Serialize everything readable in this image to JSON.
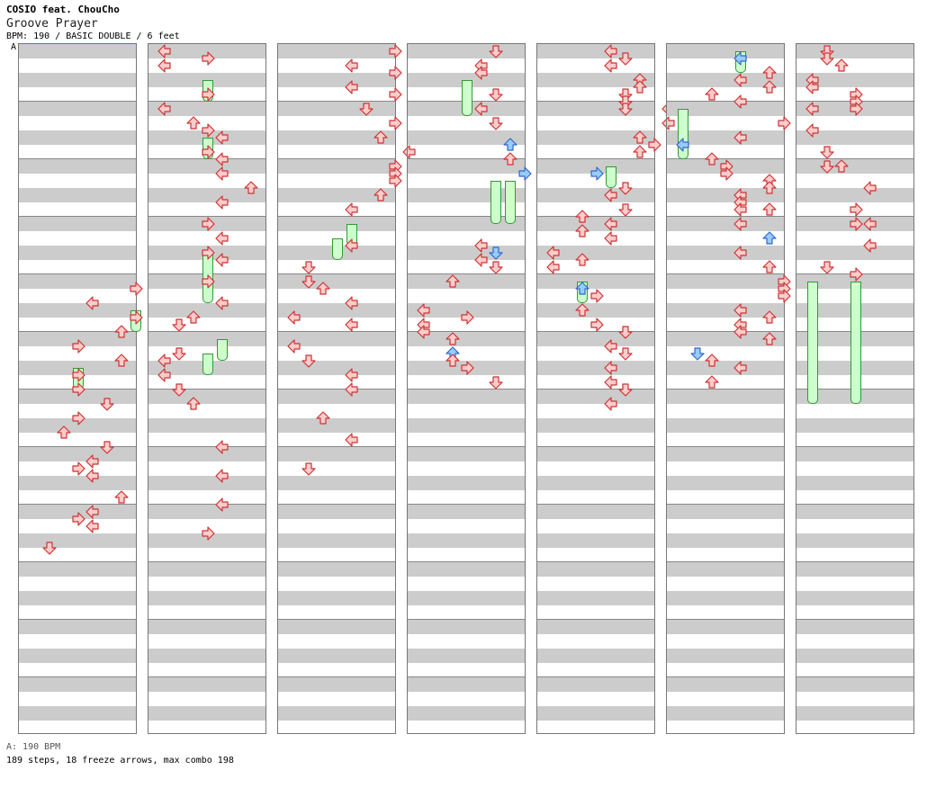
{
  "header": {
    "artist": "COSIO feat. ChouCho",
    "title": "Groove Prayer",
    "info": "BPM: 190 / BASIC DOUBLE / 6 feet"
  },
  "bpm_marker": "A",
  "footer": {
    "bpm_legend": "A: 190 BPM",
    "stats": "189 steps, 18 freeze arrows, max combo 198"
  },
  "colors": {
    "note_red_fill": "#ffcccc",
    "note_red_stroke": "#cc3333",
    "note_blue_fill": "#99ccff",
    "note_blue_stroke": "#3366cc",
    "freeze_fill": "#ccffcc",
    "freeze_stroke": "#339933",
    "stripe": "#cccccc"
  },
  "chart_data": {
    "type": "step-chart",
    "mode": "double",
    "lanes": [
      "P1-left",
      "P1-down",
      "P1-up",
      "P1-right",
      "P2-left",
      "P2-down",
      "P2-up",
      "P2-right"
    ],
    "columns": 7,
    "measures_per_column": 12,
    "rows_per_measure": 8,
    "notes": [
      [
        0,
        33,
        7,
        "r"
      ],
      [
        0,
        35,
        4,
        "r"
      ],
      [
        0,
        37,
        7,
        "r"
      ],
      [
        0,
        39,
        6,
        "r"
      ],
      [
        0,
        41,
        3,
        "r"
      ],
      [
        0,
        43,
        6,
        "r"
      ],
      [
        0,
        45,
        3,
        "r"
      ],
      [
        0,
        47,
        3,
        "r"
      ],
      [
        0,
        49,
        5,
        "r"
      ],
      [
        0,
        51,
        3,
        "r"
      ],
      [
        0,
        53,
        2,
        "r"
      ],
      [
        0,
        55,
        5,
        "r"
      ],
      [
        0,
        57,
        4,
        "r"
      ],
      [
        0,
        58,
        3,
        "r"
      ],
      [
        0,
        59,
        4,
        "r"
      ],
      [
        0,
        62,
        6,
        "r"
      ],
      [
        0,
        64,
        4,
        "r"
      ],
      [
        0,
        65,
        3,
        "r"
      ],
      [
        0,
        66,
        4,
        "r"
      ],
      [
        0,
        69,
        1,
        "r"
      ],
      [
        1,
        0,
        0,
        "r"
      ],
      [
        1,
        1,
        3,
        "r"
      ],
      [
        1,
        2,
        0,
        "r"
      ],
      [
        1,
        6,
        3,
        "r"
      ],
      [
        1,
        8,
        0,
        "r"
      ],
      [
        1,
        10,
        2,
        "r"
      ],
      [
        1,
        11,
        3,
        "r"
      ],
      [
        1,
        12,
        4,
        "r"
      ],
      [
        1,
        14,
        3,
        "r"
      ],
      [
        1,
        15,
        4,
        "r"
      ],
      [
        1,
        17,
        4,
        "r"
      ],
      [
        1,
        19,
        6,
        "r"
      ],
      [
        1,
        21,
        4,
        "r"
      ],
      [
        1,
        24,
        3,
        "r"
      ],
      [
        1,
        26,
        4,
        "r"
      ],
      [
        1,
        28,
        3,
        "r"
      ],
      [
        1,
        29,
        4,
        "r"
      ],
      [
        1,
        32,
        3,
        "r"
      ],
      [
        1,
        35,
        4,
        "r"
      ],
      [
        1,
        37,
        2,
        "r"
      ],
      [
        1,
        38,
        1,
        "r"
      ],
      [
        1,
        42,
        1,
        "r"
      ],
      [
        1,
        43,
        0,
        "r"
      ],
      [
        1,
        45,
        0,
        "r"
      ],
      [
        1,
        47,
        1,
        "r"
      ],
      [
        1,
        49,
        2,
        "r"
      ],
      [
        1,
        55,
        4,
        "r"
      ],
      [
        1,
        59,
        4,
        "r"
      ],
      [
        1,
        63,
        4,
        "r"
      ],
      [
        1,
        67,
        3,
        "r"
      ],
      [
        2,
        0,
        7,
        "r"
      ],
      [
        2,
        2,
        4,
        "r"
      ],
      [
        2,
        3,
        7,
        "r"
      ],
      [
        2,
        5,
        4,
        "r"
      ],
      [
        2,
        6,
        7,
        "r"
      ],
      [
        2,
        8,
        5,
        "r"
      ],
      [
        2,
        10,
        7,
        "r"
      ],
      [
        2,
        12,
        6,
        "r"
      ],
      [
        2,
        14,
        8,
        "r"
      ],
      [
        2,
        16,
        7,
        "r"
      ],
      [
        2,
        17,
        7,
        "r"
      ],
      [
        2,
        18,
        7,
        "r"
      ],
      [
        2,
        20,
        6,
        "r"
      ],
      [
        2,
        22,
        4,
        "r"
      ],
      [
        2,
        27,
        4,
        "r"
      ],
      [
        2,
        30,
        1,
        "r"
      ],
      [
        2,
        32,
        1,
        "r"
      ],
      [
        2,
        33,
        2,
        "r"
      ],
      [
        2,
        35,
        4,
        "r"
      ],
      [
        2,
        37,
        0,
        "r"
      ],
      [
        2,
        38,
        4,
        "r"
      ],
      [
        2,
        41,
        0,
        "r"
      ],
      [
        2,
        43,
        1,
        "r"
      ],
      [
        2,
        45,
        4,
        "r"
      ],
      [
        2,
        47,
        4,
        "r"
      ],
      [
        2,
        51,
        2,
        "r"
      ],
      [
        2,
        54,
        4,
        "r"
      ],
      [
        2,
        58,
        1,
        "r"
      ],
      [
        3,
        0,
        5,
        "r"
      ],
      [
        3,
        2,
        4,
        "r"
      ],
      [
        3,
        3,
        4,
        "r"
      ],
      [
        3,
        6,
        5,
        "r"
      ],
      [
        3,
        8,
        4,
        "r"
      ],
      [
        3,
        10,
        5,
        "r"
      ],
      [
        3,
        13,
        6,
        "b"
      ],
      [
        3,
        15,
        6,
        "r"
      ],
      [
        3,
        17,
        7,
        "b"
      ],
      [
        3,
        27,
        4,
        "r"
      ],
      [
        3,
        28,
        5,
        "b"
      ],
      [
        3,
        29,
        4,
        "r"
      ],
      [
        3,
        30,
        5,
        "r"
      ],
      [
        3,
        32,
        2,
        "r"
      ],
      [
        3,
        36,
        0,
        "r"
      ],
      [
        3,
        37,
        3,
        "r"
      ],
      [
        3,
        38,
        0,
        "r"
      ],
      [
        3,
        39,
        0,
        "r"
      ],
      [
        3,
        40,
        2,
        "r"
      ],
      [
        3,
        42,
        2,
        "b"
      ],
      [
        3,
        43,
        2,
        "r"
      ],
      [
        3,
        44,
        3,
        "r"
      ],
      [
        3,
        46,
        5,
        "r"
      ],
      [
        4,
        0,
        4,
        "r"
      ],
      [
        4,
        1,
        5,
        "r"
      ],
      [
        4,
        2,
        4,
        "r"
      ],
      [
        4,
        4,
        6,
        "r"
      ],
      [
        4,
        5,
        6,
        "r"
      ],
      [
        4,
        6,
        5,
        "r"
      ],
      [
        4,
        7,
        5,
        "r"
      ],
      [
        4,
        8,
        5,
        "r"
      ],
      [
        4,
        8,
        8,
        "r"
      ],
      [
        4,
        10,
        8,
        "r"
      ],
      [
        4,
        12,
        6,
        "r"
      ],
      [
        4,
        13,
        7,
        "r"
      ],
      [
        4,
        14,
        6,
        "r"
      ],
      [
        4,
        17,
        3,
        "b"
      ],
      [
        4,
        19,
        5,
        "r"
      ],
      [
        4,
        20,
        4,
        "r"
      ],
      [
        4,
        22,
        5,
        "r"
      ],
      [
        4,
        23,
        2,
        "r"
      ],
      [
        4,
        24,
        4,
        "r"
      ],
      [
        4,
        25,
        2,
        "r"
      ],
      [
        4,
        26,
        4,
        "r"
      ],
      [
        4,
        28,
        0,
        "r"
      ],
      [
        4,
        29,
        2,
        "r"
      ],
      [
        4,
        30,
        0,
        "r"
      ],
      [
        4,
        33,
        2,
        "b"
      ],
      [
        4,
        34,
        3,
        "r"
      ],
      [
        4,
        36,
        2,
        "r"
      ],
      [
        4,
        38,
        3,
        "r"
      ],
      [
        4,
        39,
        5,
        "r"
      ],
      [
        4,
        41,
        4,
        "r"
      ],
      [
        4,
        42,
        5,
        "r"
      ],
      [
        4,
        44,
        4,
        "r"
      ],
      [
        4,
        46,
        4,
        "r"
      ],
      [
        4,
        47,
        5,
        "r"
      ],
      [
        4,
        49,
        4,
        "r"
      ],
      [
        5,
        1,
        4,
        "b"
      ],
      [
        5,
        3,
        6,
        "r"
      ],
      [
        5,
        4,
        4,
        "r"
      ],
      [
        5,
        5,
        6,
        "r"
      ],
      [
        5,
        6,
        2,
        "r"
      ],
      [
        5,
        7,
        4,
        "r"
      ],
      [
        5,
        10,
        7,
        "r"
      ],
      [
        5,
        12,
        4,
        "r"
      ],
      [
        5,
        13,
        0,
        "b"
      ],
      [
        5,
        15,
        2,
        "r"
      ],
      [
        5,
        16,
        3,
        "r"
      ],
      [
        5,
        17,
        3,
        "r"
      ],
      [
        5,
        18,
        6,
        "r"
      ],
      [
        5,
        19,
        6,
        "r"
      ],
      [
        5,
        20,
        4,
        "r"
      ],
      [
        5,
        21,
        4,
        "r"
      ],
      [
        5,
        22,
        4,
        "r"
      ],
      [
        5,
        22,
        6,
        "r"
      ],
      [
        5,
        24,
        4,
        "r"
      ],
      [
        5,
        26,
        6,
        "b"
      ],
      [
        5,
        28,
        4,
        "r"
      ],
      [
        5,
        30,
        6,
        "r"
      ],
      [
        5,
        32,
        7,
        "r"
      ],
      [
        5,
        33,
        7,
        "r"
      ],
      [
        5,
        34,
        7,
        "r"
      ],
      [
        5,
        36,
        4,
        "r"
      ],
      [
        5,
        37,
        6,
        "r"
      ],
      [
        5,
        38,
        4,
        "r"
      ],
      [
        5,
        39,
        4,
        "r"
      ],
      [
        5,
        40,
        6,
        "r"
      ],
      [
        5,
        42,
        1,
        "b"
      ],
      [
        5,
        43,
        2,
        "r"
      ],
      [
        5,
        44,
        4,
        "r"
      ],
      [
        5,
        46,
        2,
        "r"
      ],
      [
        6,
        0,
        1,
        "r"
      ],
      [
        6,
        1,
        1,
        "r"
      ],
      [
        6,
        2,
        2,
        "r"
      ],
      [
        6,
        4,
        0,
        "r"
      ],
      [
        6,
        5,
        0,
        "r"
      ],
      [
        6,
        6,
        3,
        "r"
      ],
      [
        6,
        7,
        3,
        "r"
      ],
      [
        6,
        8,
        0,
        "r"
      ],
      [
        6,
        8,
        3,
        "r"
      ],
      [
        6,
        11,
        0,
        "r"
      ],
      [
        6,
        14,
        1,
        "r"
      ],
      [
        6,
        16,
        1,
        "r"
      ],
      [
        6,
        16,
        2,
        "r"
      ],
      [
        6,
        19,
        4,
        "r"
      ],
      [
        6,
        22,
        3,
        "r"
      ],
      [
        6,
        24,
        3,
        "r"
      ],
      [
        6,
        24,
        4,
        "r"
      ],
      [
        6,
        27,
        4,
        "r"
      ],
      [
        6,
        30,
        1,
        "r"
      ],
      [
        6,
        31,
        3,
        "r"
      ]
    ],
    "freezes": [
      [
        0,
        36,
        7,
        1.5
      ],
      [
        0,
        44,
        3,
        1.5
      ],
      [
        1,
        4,
        3,
        1.5
      ],
      [
        1,
        12,
        3,
        1.5
      ],
      [
        1,
        28,
        3,
        3.5
      ],
      [
        1,
        40,
        4,
        1.5
      ],
      [
        1,
        42,
        3,
        1.5
      ],
      [
        2,
        24,
        4,
        1.5
      ],
      [
        2,
        26,
        3,
        1.5
      ],
      [
        3,
        4,
        3,
        2.5
      ],
      [
        3,
        18,
        5,
        3
      ],
      [
        3,
        18,
        6,
        3
      ],
      [
        4,
        32,
        2,
        1.5
      ],
      [
        4,
        16,
        4,
        1.5
      ],
      [
        5,
        0,
        4,
        1.5
      ],
      [
        5,
        8,
        0,
        3.5
      ],
      [
        6,
        32,
        0,
        8.5
      ],
      [
        6,
        32,
        3,
        8.5
      ]
    ]
  }
}
